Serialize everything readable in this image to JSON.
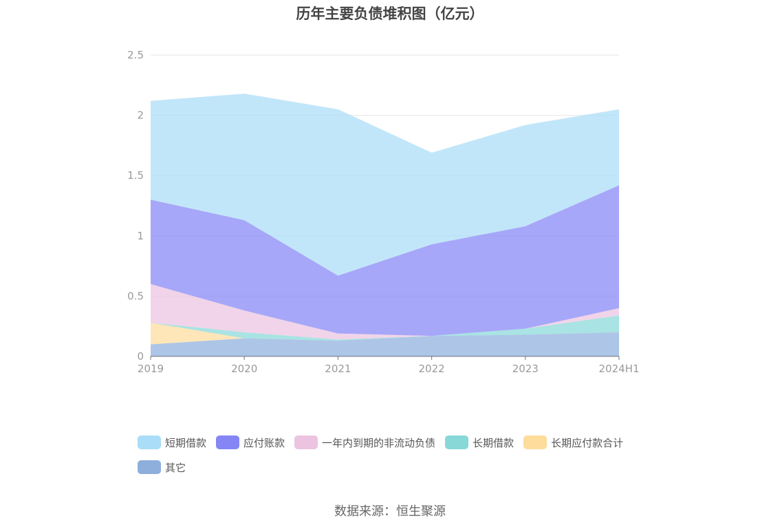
{
  "chart_data": {
    "type": "area",
    "stacked": true,
    "title": "历年主要负债堆积图（亿元）",
    "categories": [
      "2019",
      "2020",
      "2021",
      "2022",
      "2023",
      "2024H1"
    ],
    "ylim": [
      0,
      2.5
    ],
    "yticks": [
      "0",
      "0.5",
      "1",
      "1.5",
      "2",
      "2.5"
    ],
    "grid": true,
    "legend_position": "bottom",
    "series": [
      {
        "name": "其它",
        "color": "#8eaedc",
        "values": [
          0.1,
          0.15,
          0.13,
          0.17,
          0.18,
          0.2
        ]
      },
      {
        "name": "长期应付款合计",
        "color": "#fddc9c",
        "values": [
          0.18,
          0.0,
          0.0,
          0.0,
          0.0,
          0.0
        ]
      },
      {
        "name": "长期借款",
        "color": "#88d8d8",
        "values": [
          0.0,
          0.05,
          0.01,
          0.0,
          0.05,
          0.14
        ]
      },
      {
        "name": "一年内到期的非流动负债",
        "color": "#ecc3e1",
        "values": [
          0.32,
          0.18,
          0.05,
          0.0,
          0.0,
          0.06
        ]
      },
      {
        "name": "应付账款",
        "color": "#8585f6",
        "values": [
          0.7,
          0.75,
          0.48,
          0.76,
          0.85,
          1.02
        ]
      },
      {
        "name": "短期借款",
        "color": "#aaddf7",
        "values": [
          0.82,
          1.05,
          1.38,
          0.76,
          0.84,
          0.63
        ]
      }
    ]
  },
  "legend_order": [
    {
      "label": "短期借款",
      "color": "#aaddf7"
    },
    {
      "label": "应付账款",
      "color": "#8585f6"
    },
    {
      "label": "一年内到期的非流动负债",
      "color": "#ecc3e1"
    },
    {
      "label": "长期借款",
      "color": "#88d8d8"
    },
    {
      "label": "长期应付款合计",
      "color": "#fddc9c"
    },
    {
      "label": "其它",
      "color": "#8eaedc"
    }
  ],
  "source": "数据来源：恒生聚源"
}
